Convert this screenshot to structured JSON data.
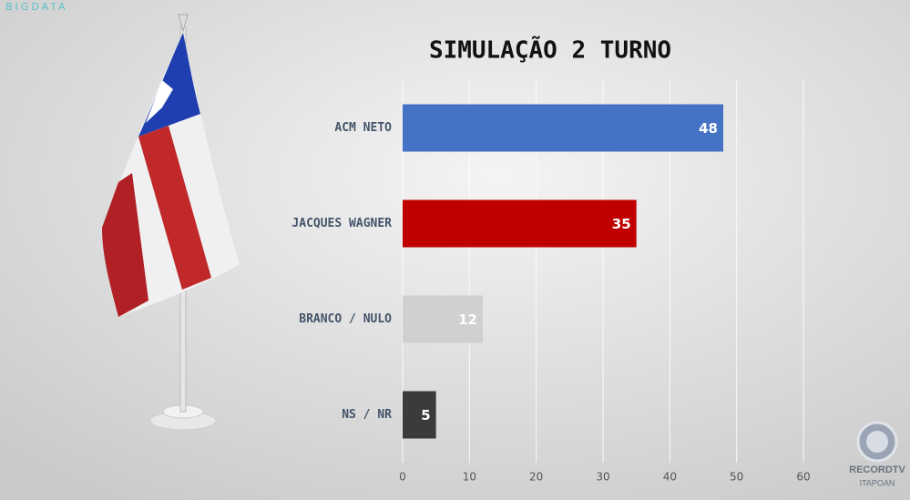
{
  "brand": "BIGDATA",
  "logo": {
    "name": "RECORDTV",
    "location": "ITAPOAN"
  },
  "chart_data": {
    "type": "bar",
    "orientation": "horizontal",
    "title": "SIMULAÇÃO 2 TURNO",
    "categories": [
      "ACM NETO",
      "JACQUES WAGNER",
      "BRANCO / NULO",
      "NS / NR"
    ],
    "values": [
      48,
      35,
      12,
      5
    ],
    "colors": [
      "#4472c4",
      "#c00000",
      "#d0d0d0",
      "#3b3b3b"
    ],
    "xlim": [
      0,
      60
    ],
    "xticks": [
      0,
      10,
      20,
      30,
      40,
      50,
      60
    ],
    "grid": true
  }
}
